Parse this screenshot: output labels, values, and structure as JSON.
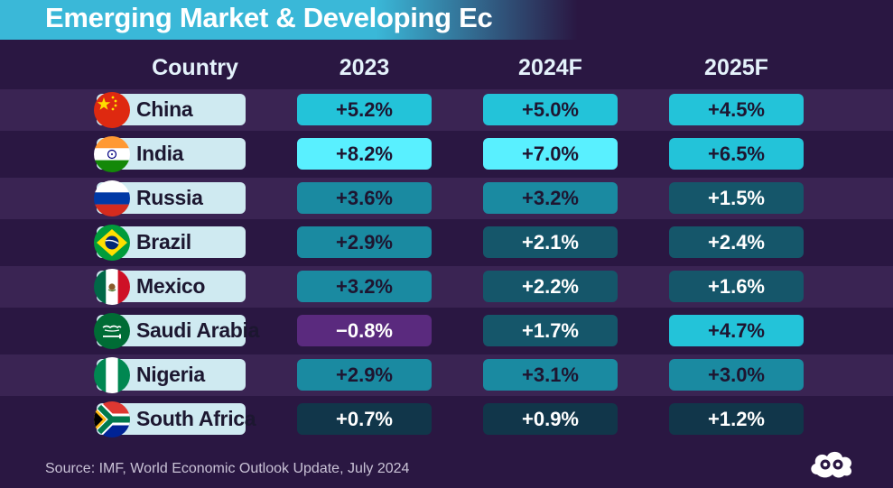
{
  "title": "Emerging Market & Developing Ec",
  "source": "Source: IMF, World Economic Outlook Update, July 2024",
  "logo_icon": "visual-capitalist-cloud-logo",
  "chart_data": {
    "type": "table",
    "title": "Emerging Market & Developing Ec",
    "columns": [
      "Country",
      "2023",
      "2024F",
      "2025F"
    ],
    "rows": [
      {
        "country": "China",
        "flag_icon": "china-flag-icon",
        "values": [
          "+5.2%",
          "+5.0%",
          "+4.5%"
        ],
        "numeric": [
          5.2,
          5.0,
          4.5
        ]
      },
      {
        "country": "India",
        "flag_icon": "india-flag-icon",
        "values": [
          "+8.2%",
          "+7.0%",
          "+6.5%"
        ],
        "numeric": [
          8.2,
          7.0,
          6.5
        ]
      },
      {
        "country": "Russia",
        "flag_icon": "russia-flag-icon",
        "values": [
          "+3.6%",
          "+3.2%",
          "+1.5%"
        ],
        "numeric": [
          3.6,
          3.2,
          1.5
        ]
      },
      {
        "country": "Brazil",
        "flag_icon": "brazil-flag-icon",
        "values": [
          "+2.9%",
          "+2.1%",
          "+2.4%"
        ],
        "numeric": [
          2.9,
          2.1,
          2.4
        ]
      },
      {
        "country": "Mexico",
        "flag_icon": "mexico-flag-icon",
        "values": [
          "+3.2%",
          "+2.2%",
          "+1.6%"
        ],
        "numeric": [
          3.2,
          2.2,
          1.6
        ]
      },
      {
        "country": "Saudi Arabia",
        "flag_icon": "saudi-arabia-flag-icon",
        "values": [
          "−0.8%",
          "+1.7%",
          "+4.7%"
        ],
        "numeric": [
          -0.8,
          1.7,
          4.7
        ]
      },
      {
        "country": "Nigeria",
        "flag_icon": "nigeria-flag-icon",
        "values": [
          "+2.9%",
          "+3.1%",
          "+3.0%"
        ],
        "numeric": [
          2.9,
          3.1,
          3.0
        ]
      },
      {
        "country": "South Africa",
        "flag_icon": "south-africa-flag-icon",
        "values": [
          "+0.7%",
          "+0.9%",
          "+1.2%"
        ],
        "numeric": [
          0.7,
          0.9,
          1.2
        ]
      }
    ],
    "colors": {
      "negative": "#5a2a7e",
      "very_low": "#11364a",
      "low": "#15566a",
      "mid": "#1a8aa1",
      "high": "#23c3d9",
      "very_high": "#59f0ff",
      "band": "#3a2453",
      "background": "#2a1742"
    }
  }
}
